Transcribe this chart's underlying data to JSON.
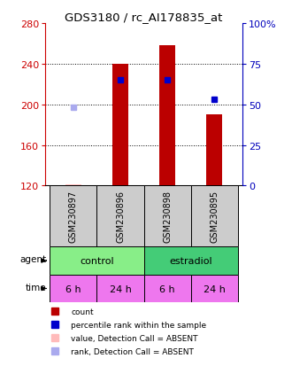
{
  "title": "GDS3180 / rc_AI178835_at",
  "samples": [
    "GSM230897",
    "GSM230896",
    "GSM230898",
    "GSM230895"
  ],
  "bar_values": [
    null,
    240,
    258,
    190
  ],
  "absent_bar_values": [
    121,
    null,
    null,
    null
  ],
  "pct_rank_values": [
    null,
    65,
    65,
    53
  ],
  "absent_rank_values": [
    48,
    null,
    null,
    null
  ],
  "ylim_left": [
    120,
    280
  ],
  "ylim_right": [
    0,
    100
  ],
  "yticks_left": [
    120,
    160,
    200,
    240,
    280
  ],
  "yticks_right": [
    0,
    25,
    50,
    75,
    100
  ],
  "ytick_labels_right": [
    "0",
    "25",
    "50",
    "75",
    "100%"
  ],
  "agent_labels": [
    "control",
    "estradiol"
  ],
  "agent_colors": [
    "#88ee88",
    "#44cc77"
  ],
  "time_labels": [
    "6 h",
    "24 h",
    "6 h",
    "24 h"
  ],
  "time_color": "#ee77ee",
  "bar_color": "#bb0000",
  "absent_bar_color": "#ffbbbb",
  "pct_rank_color": "#0000cc",
  "absent_rank_color": "#aaaaee",
  "left_axis_color": "#cc0000",
  "right_axis_color": "#0000bb",
  "grid_color": "#888888",
  "bar_width": 0.35,
  "legend_items": [
    {
      "label": "count",
      "color": "#bb0000"
    },
    {
      "label": "percentile rank within the sample",
      "color": "#0000cc"
    },
    {
      "label": "value, Detection Call = ABSENT",
      "color": "#ffbbbb"
    },
    {
      "label": "rank, Detection Call = ABSENT",
      "color": "#aaaaee"
    }
  ]
}
